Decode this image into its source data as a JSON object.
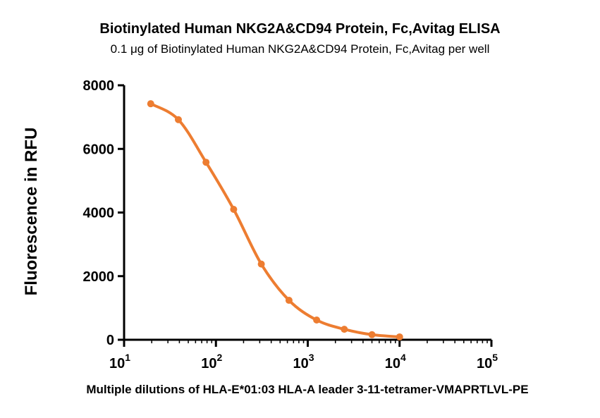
{
  "chart_data": {
    "type": "line",
    "title": "Biotinylated Human NKG2A&CD94 Protein, Fc,Avitag ELISA",
    "subtitle": "0.1 μg of Biotinylated Human NKG2A&CD94 Protein, Fc,Avitag per well",
    "xlabel": "Multiple dilutions of HLA-E*01:03 HLA-A leader 3-11-tetramer-VMAPRTLVL-PE",
    "ylabel": "Fluorescence in RFU",
    "x_scale": "log",
    "xlim": [
      10,
      100000
    ],
    "ylim": [
      0,
      8000
    ],
    "y_ticks": [
      0,
      2000,
      4000,
      6000,
      8000
    ],
    "x_ticks": [
      {
        "value": 10,
        "base": "10",
        "exp": "1"
      },
      {
        "value": 100,
        "base": "10",
        "exp": "2"
      },
      {
        "value": 1000,
        "base": "10",
        "exp": "3"
      },
      {
        "value": 10000,
        "base": "10",
        "exp": "4"
      },
      {
        "value": 100000,
        "base": "10",
        "exp": "5"
      }
    ],
    "series": [
      {
        "color": "#ED7D31",
        "x": [
          19.5,
          39,
          78,
          156,
          312,
          625,
          1250,
          2500,
          5000,
          10000
        ],
        "y": [
          7420,
          6920,
          5580,
          4100,
          2380,
          1240,
          620,
          330,
          160,
          90
        ]
      }
    ],
    "grid": false
  }
}
